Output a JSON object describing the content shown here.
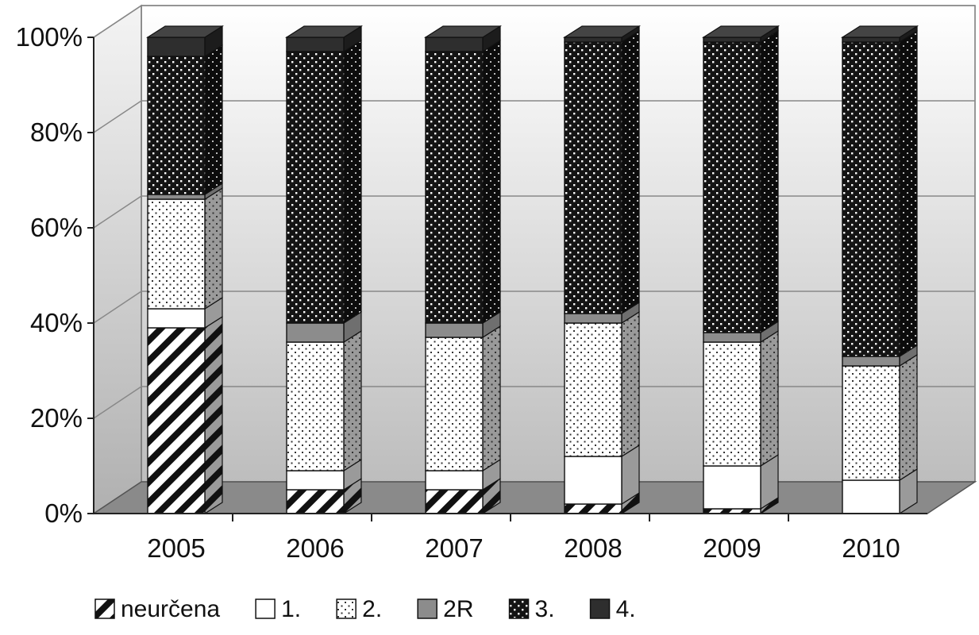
{
  "chart_data": {
    "type": "bar",
    "stacked": true,
    "normalized": true,
    "three_d": true,
    "categories": [
      "2005",
      "2006",
      "2007",
      "2008",
      "2009",
      "2010"
    ],
    "series": [
      {
        "name": "neurčena",
        "pattern": "diagonal-hatch",
        "values": [
          39,
          5,
          5,
          2,
          1,
          0
        ]
      },
      {
        "name": "1.",
        "pattern": "white",
        "values": [
          4,
          4,
          4,
          10,
          9,
          7
        ]
      },
      {
        "name": "2.",
        "pattern": "light-dots",
        "values": [
          23,
          27,
          28,
          28,
          26,
          24
        ]
      },
      {
        "name": "2R",
        "pattern": "gray",
        "values": [
          1,
          4,
          3,
          2,
          2,
          2
        ]
      },
      {
        "name": "3.",
        "pattern": "dark-dots",
        "values": [
          29,
          57,
          57,
          57,
          61,
          66
        ]
      },
      {
        "name": "4.",
        "pattern": "dark",
        "values": [
          4,
          3,
          3,
          1,
          1,
          1
        ]
      }
    ],
    "y_ticks": [
      "0%",
      "20%",
      "40%",
      "60%",
      "80%",
      "100%"
    ],
    "ylim": [
      0,
      100
    ],
    "grid": true,
    "legend_position": "bottom",
    "colors": {
      "floor": "#8a8a8a",
      "gridline": "#888888",
      "dark": "#2e2e2e",
      "gray": "#8c8c8c",
      "white": "#ffffff"
    }
  }
}
